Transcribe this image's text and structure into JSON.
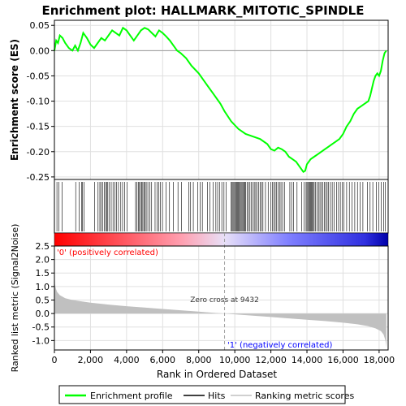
{
  "title": "Enrichment plot: HALLMARK_MITOTIC_SPINDLE",
  "colors": {
    "es_line": "#00ff00",
    "hits": "#000000",
    "grid": "#e0e0e0",
    "metric_fill": "#c0c0c0",
    "pos_label": "#ff0000",
    "neg_label": "#0000ff",
    "zero_cross_line": "#a0a0a0"
  },
  "chart_data": [
    {
      "type": "line",
      "name": "enrichment-profile",
      "ylabel": "Enrichment score (ES)",
      "xlim": [
        0,
        18500
      ],
      "ylim": [
        -0.255,
        0.06
      ],
      "y_ticks": [
        0.05,
        0.0,
        -0.05,
        -0.1,
        -0.15,
        -0.2,
        -0.25
      ],
      "y_tick_labels": [
        "0.05",
        "0.00",
        "-0.05",
        "-0.10",
        "-0.15",
        "-0.20",
        "-0.25"
      ],
      "grid": true,
      "x": [
        0,
        100,
        200,
        300,
        450,
        600,
        800,
        1000,
        1150,
        1300,
        1450,
        1600,
        1800,
        2000,
        2200,
        2400,
        2600,
        2800,
        3000,
        3200,
        3400,
        3600,
        3800,
        4000,
        4200,
        4400,
        4600,
        4800,
        5000,
        5200,
        5400,
        5600,
        5800,
        6000,
        6200,
        6400,
        6600,
        6800,
        7000,
        7300,
        7600,
        8000,
        8400,
        8800,
        9200,
        9432,
        9800,
        10200,
        10600,
        11000,
        11400,
        11800,
        12000,
        12200,
        12400,
        12600,
        12800,
        13000,
        13200,
        13400,
        13600,
        13800,
        13900,
        14000,
        14200,
        14400,
        14600,
        14800,
        15000,
        15200,
        15400,
        15600,
        15800,
        16000,
        16200,
        16400,
        16600,
        16800,
        17000,
        17200,
        17400,
        17500,
        17600,
        17700,
        17800,
        17900,
        18000,
        18100,
        18200,
        18300,
        18400
      ],
      "y": [
        0.0,
        0.02,
        0.015,
        0.03,
        0.025,
        0.015,
        0.005,
        0.0,
        0.01,
        0.0,
        0.015,
        0.035,
        0.025,
        0.012,
        0.005,
        0.015,
        0.025,
        0.02,
        0.03,
        0.04,
        0.035,
        0.03,
        0.045,
        0.04,
        0.03,
        0.02,
        0.03,
        0.04,
        0.045,
        0.042,
        0.035,
        0.028,
        0.04,
        0.035,
        0.028,
        0.02,
        0.01,
        0.0,
        -0.005,
        -0.015,
        -0.03,
        -0.045,
        -0.065,
        -0.085,
        -0.105,
        -0.12,
        -0.14,
        -0.155,
        -0.165,
        -0.17,
        -0.175,
        -0.185,
        -0.195,
        -0.198,
        -0.192,
        -0.195,
        -0.2,
        -0.21,
        -0.215,
        -0.22,
        -0.23,
        -0.24,
        -0.238,
        -0.225,
        -0.215,
        -0.21,
        -0.205,
        -0.2,
        -0.195,
        -0.19,
        -0.185,
        -0.18,
        -0.175,
        -0.165,
        -0.15,
        -0.14,
        -0.125,
        -0.115,
        -0.11,
        -0.105,
        -0.1,
        -0.09,
        -0.075,
        -0.06,
        -0.05,
        -0.045,
        -0.05,
        -0.04,
        -0.02,
        -0.005,
        0.0
      ]
    },
    {
      "type": "scatter",
      "name": "hits",
      "xlim": [
        0,
        18500
      ],
      "hit_positions": [
        140,
        240,
        420,
        1180,
        1380,
        1500,
        1560,
        1650,
        2220,
        2420,
        2520,
        2580,
        2680,
        2760,
        2840,
        2900,
        2960,
        3050,
        3150,
        3250,
        3350,
        3450,
        3550,
        3680,
        3780,
        3900,
        4020,
        4500,
        4580,
        4650,
        4710,
        4780,
        4840,
        4900,
        4960,
        5020,
        5090,
        5180,
        5280,
        5390,
        5580,
        5690,
        5780,
        5880,
        5990,
        6180,
        6380,
        6590,
        6850,
        7050,
        7450,
        7550,
        7700,
        7950,
        8080,
        8200,
        8480,
        8620,
        8800,
        8950,
        9050,
        9150,
        9280,
        9400,
        9520,
        9800,
        9850,
        9900,
        9950,
        10000,
        10050,
        10100,
        10150,
        10200,
        10250,
        10300,
        10350,
        10400,
        10450,
        10500,
        10550,
        10600,
        10680,
        10760,
        10840,
        10920,
        11000,
        11080,
        11160,
        11240,
        11320,
        11400,
        11480,
        11560,
        11700,
        11850,
        12000,
        12080,
        12160,
        12240,
        12320,
        12400,
        12480,
        12560,
        12650,
        12750,
        13050,
        13150,
        13250,
        13450,
        13700,
        13850,
        13950,
        14000,
        14050,
        14100,
        14150,
        14200,
        14250,
        14300,
        14350,
        14400,
        14480,
        14560,
        14640,
        14720,
        14800,
        14880,
        14960,
        15040,
        15120,
        15200,
        15300,
        15400,
        15500,
        15650,
        15750,
        15850,
        15950,
        16050,
        16200,
        16350,
        16500,
        16650,
        16800,
        16950,
        17100,
        17350,
        17500,
        17650,
        17850,
        17980,
        18120,
        18250,
        18350
      ]
    },
    {
      "type": "area",
      "name": "ranked-list-metric",
      "ylabel": "Ranked list metric (Signal2Noise)",
      "xlabel": "Rank in Ordered Dataset",
      "xlim": [
        0,
        18500
      ],
      "ylim": [
        -1.35,
        2.5
      ],
      "y_ticks": [
        2.5,
        2.0,
        1.5,
        1.0,
        0.5,
        0.0,
        -0.5,
        -1.0
      ],
      "y_tick_labels": [
        "2.5",
        "2.0",
        "1.5",
        "1.0",
        "0.5",
        "0.0",
        "-0.5",
        "-1.0"
      ],
      "x_ticks": [
        0,
        2000,
        4000,
        6000,
        8000,
        10000,
        12000,
        14000,
        16000,
        18000
      ],
      "x_tick_labels": [
        "0",
        "2,000",
        "4,000",
        "6,000",
        "8,000",
        "10,000",
        "12,000",
        "14,000",
        "16,000",
        "18,000"
      ],
      "grid": true,
      "x": [
        0,
        30,
        80,
        150,
        300,
        600,
        1000,
        2000,
        3000,
        4000,
        5000,
        6000,
        7000,
        8000,
        9000,
        9432,
        10000,
        11000,
        12000,
        13000,
        14000,
        15000,
        16000,
        16800,
        17400,
        17800,
        18100,
        18250,
        18350,
        18400
      ],
      "y": [
        2.3,
        1.1,
        0.92,
        0.8,
        0.68,
        0.57,
        0.5,
        0.4,
        0.33,
        0.27,
        0.22,
        0.17,
        0.12,
        0.07,
        0.02,
        0.0,
        -0.03,
        -0.08,
        -0.13,
        -0.18,
        -0.23,
        -0.28,
        -0.34,
        -0.4,
        -0.47,
        -0.55,
        -0.65,
        -0.78,
        -1.0,
        -1.25
      ],
      "zero_cross": 9432,
      "zero_cross_label": "Zero cross at 9432",
      "pos_label": "'0' (positively correlated)",
      "neg_label": "'1' (negatively correlated)"
    }
  ],
  "legend": {
    "position": "bottom",
    "items": [
      "Enrichment profile",
      "Hits",
      "Ranking metric scores"
    ]
  }
}
